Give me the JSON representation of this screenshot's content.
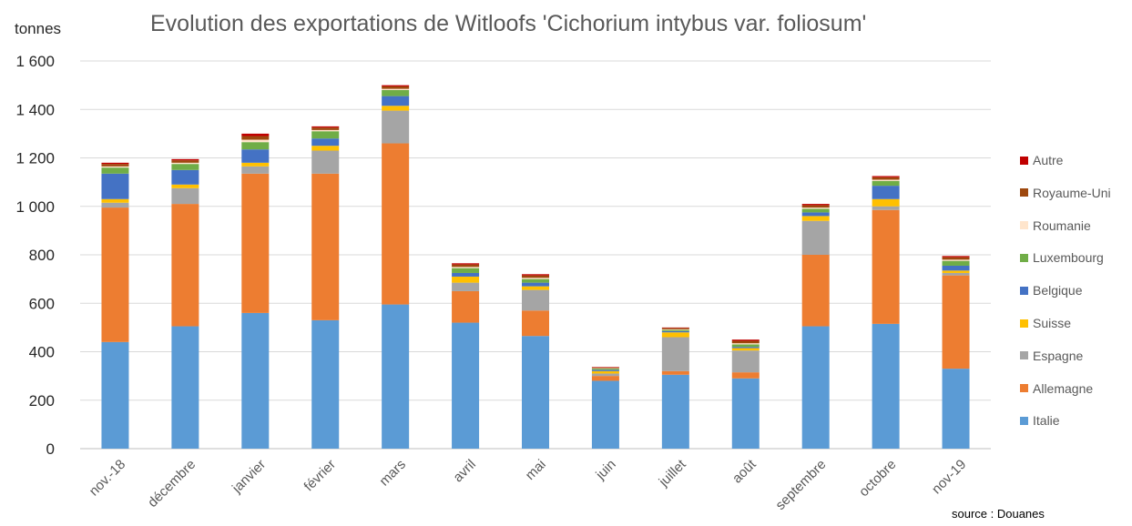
{
  "chart_data": {
    "type": "bar",
    "stacked": true,
    "title": "Evolution des exportations de Witloofs 'Cichorium intybus var. foliosum'",
    "ylabel": "tonnes",
    "source": "source : Douanes",
    "ylim": [
      0,
      1600
    ],
    "yticks": [
      "0",
      "200",
      "400",
      "600",
      "800",
      "1 000",
      "1 200",
      "1 400",
      "1 600"
    ],
    "ytick_values": [
      0,
      200,
      400,
      600,
      800,
      1000,
      1200,
      1400,
      1600
    ],
    "grid": true,
    "legend_position": "right",
    "categories": [
      "nov.-18",
      "décembre",
      "janvier",
      "février",
      "mars",
      "avril",
      "mai",
      "juin",
      "juillet",
      "août",
      "septembre",
      "octobre",
      "nov-19"
    ],
    "series": [
      {
        "name": "Italie",
        "color": "#5B9BD5",
        "values": [
          440,
          505,
          560,
          530,
          595,
          520,
          465,
          280,
          305,
          290,
          505,
          515,
          330
        ]
      },
      {
        "name": "Allemagne",
        "color": "#ED7D31",
        "values": [
          555,
          505,
          575,
          605,
          665,
          130,
          105,
          20,
          15,
          25,
          295,
          470,
          385
        ]
      },
      {
        "name": "Espagne",
        "color": "#A5A5A5",
        "values": [
          20,
          65,
          30,
          95,
          135,
          35,
          85,
          10,
          140,
          90,
          140,
          15,
          10
        ]
      },
      {
        "name": "Suisse",
        "color": "#FFC000",
        "values": [
          15,
          15,
          15,
          20,
          20,
          25,
          15,
          10,
          20,
          10,
          20,
          30,
          10
        ]
      },
      {
        "name": "Belgique",
        "color": "#4472C4",
        "values": [
          105,
          60,
          55,
          30,
          40,
          15,
          15,
          5,
          5,
          5,
          15,
          55,
          20
        ]
      },
      {
        "name": "Luxembourg",
        "color": "#70AD47",
        "values": [
          25,
          25,
          30,
          30,
          25,
          20,
          15,
          5,
          5,
          10,
          15,
          20,
          20
        ]
      },
      {
        "name": "Roumanie",
        "color": "#FFE5CC",
        "values": [
          5,
          5,
          10,
          5,
          5,
          5,
          5,
          2,
          3,
          5,
          5,
          5,
          5
        ]
      },
      {
        "name": "Royaume-Uni",
        "color": "#9E480E",
        "values": [
          10,
          10,
          15,
          10,
          10,
          10,
          10,
          3,
          5,
          10,
          10,
          10,
          10
        ]
      },
      {
        "name": "Autre",
        "color": "#C00000",
        "values": [
          5,
          5,
          10,
          5,
          5,
          5,
          5,
          2,
          2,
          5,
          5,
          5,
          5
        ]
      }
    ]
  }
}
